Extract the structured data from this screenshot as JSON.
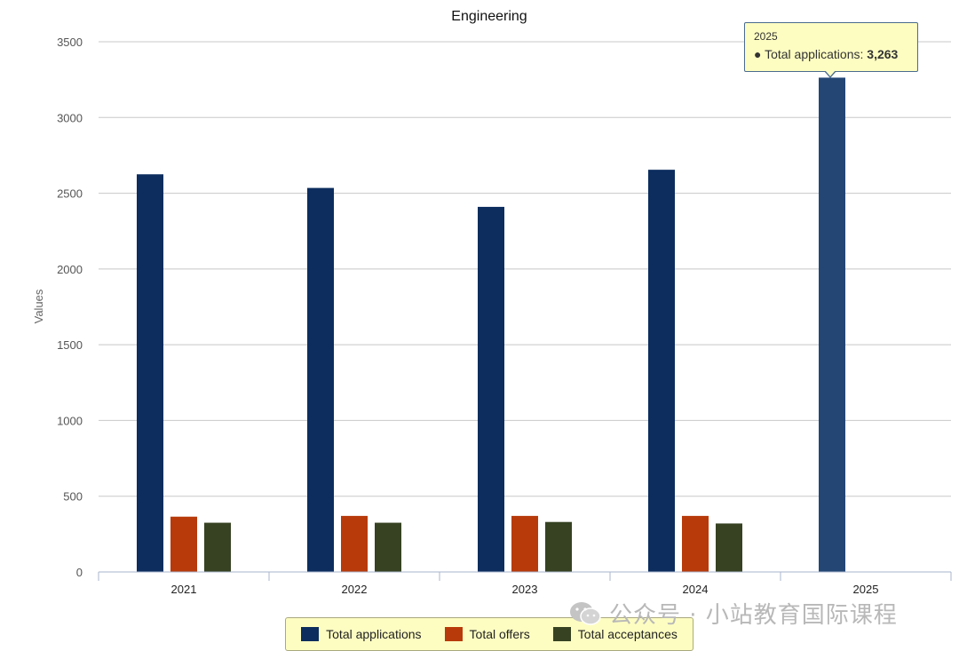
{
  "chart_data": {
    "type": "bar",
    "title": "Engineering",
    "ylabel": "Values",
    "xlabel": "",
    "categories": [
      "2021",
      "2022",
      "2023",
      "2024",
      "2025"
    ],
    "ylim": [
      0,
      3500
    ],
    "yticks": [
      0,
      500,
      1000,
      1500,
      2000,
      2500,
      3000,
      3500
    ],
    "grid": true,
    "legend_position": "bottom-center",
    "series": [
      {
        "name": "Total applications",
        "color": "#0c2d5e",
        "values": [
          2625,
          2535,
          2410,
          2655,
          3263
        ]
      },
      {
        "name": "Total offers",
        "color": "#b83a0a",
        "values": [
          365,
          370,
          370,
          370,
          null
        ]
      },
      {
        "name": "Total acceptances",
        "color": "#364222",
        "values": [
          325,
          325,
          330,
          320,
          null
        ]
      }
    ],
    "highlight_color": "#244675"
  },
  "tooltip": {
    "category": "2025",
    "series_name": "Total applications",
    "label": "● Total applications: ",
    "value": "3,263"
  },
  "watermark": {
    "text": "公众号 · 小站教育国际课程",
    "icon": "wechat-icon"
  }
}
